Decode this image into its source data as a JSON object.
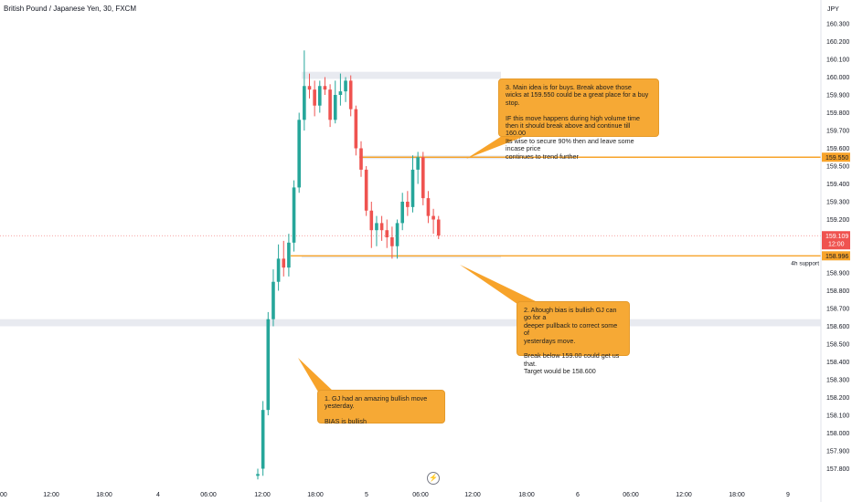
{
  "header": {
    "title": "British Pound / Japanese Yen, 30, FXCM"
  },
  "colors": {
    "up": "#26a69a",
    "down": "#ef5350",
    "accent": "#f7a32a",
    "price_tag": "#ef5350",
    "band": "#e0e3eb"
  },
  "icons": {
    "bottom": "lightning-icon"
  },
  "price_tags": {
    "last": {
      "price": "159.109",
      "time": "12:00"
    },
    "resistance": "159.550",
    "support": "158.996",
    "support_label": "4h support"
  },
  "notes": {
    "n3": "3. Main idea is for buys. Break above those\nwicks at 159.550 could be a great place for a buy stop.\n\nIF this move happens during high volume time\nthen it should break above and continue till 160.00\nIts wise to secure 90% then and leave some incase price\ncontinues to trend further",
    "n2": "2. Altough bias is bullish GJ can go for a\ndeeper pullback to correct some of\nyesterdays move.\n\nBreak below 159.00 could get us that.\nTarget would be 158.600",
    "n1": "1. GJ had an amazing bullish move yesterday.\n\nBIAS is bullish"
  },
  "chart_data": {
    "type": "candlestick",
    "symbol": "British Pound / Japanese Yen, 30, FXCM",
    "currency": "JPY",
    "y_ticks": [
      "160.300",
      "160.200",
      "160.100",
      "160.000",
      "159.900",
      "159.800",
      "159.700",
      "159.600",
      "159.500",
      "159.400",
      "159.300",
      "159.200",
      "159.100",
      "159.000",
      "158.900",
      "158.800",
      "158.700",
      "158.600",
      "158.500",
      "158.400",
      "158.300",
      "158.200",
      "158.100",
      "158.000",
      "157.900",
      "157.800"
    ],
    "x_ticks": [
      "00",
      "12:00",
      "18:00",
      "4",
      "06:00",
      "12:00",
      "18:00",
      "5",
      "06:00",
      "12:00",
      "18:00",
      "6",
      "06:00",
      "12:00",
      "18:00",
      "9"
    ],
    "ylim": [
      157.76,
      160.37
    ],
    "levels": [
      {
        "name": "resistance",
        "price": 159.55
      },
      {
        "name": "support",
        "price": 158.996
      }
    ],
    "zones": [
      {
        "price_low": 159.99,
        "price_high": 160.03
      },
      {
        "price_low": 158.6,
        "price_high": 158.64
      }
    ],
    "candles": [
      {
        "o": 157.76,
        "h": 157.8,
        "l": 157.74,
        "c": 157.77
      },
      {
        "o": 157.8,
        "h": 158.18,
        "l": 157.76,
        "c": 158.13
      },
      {
        "o": 158.13,
        "h": 158.68,
        "l": 158.1,
        "c": 158.64
      },
      {
        "o": 158.64,
        "h": 158.92,
        "l": 158.6,
        "c": 158.85
      },
      {
        "o": 158.85,
        "h": 159.06,
        "l": 158.8,
        "c": 158.98
      },
      {
        "o": 158.98,
        "h": 159.08,
        "l": 158.88,
        "c": 158.93
      },
      {
        "o": 158.93,
        "h": 159.12,
        "l": 158.88,
        "c": 159.07
      },
      {
        "o": 159.07,
        "h": 159.42,
        "l": 159.02,
        "c": 159.38
      },
      {
        "o": 159.38,
        "h": 159.8,
        "l": 159.35,
        "c": 159.76
      },
      {
        "o": 159.76,
        "h": 160.15,
        "l": 159.7,
        "c": 159.95
      },
      {
        "o": 159.95,
        "h": 160.02,
        "l": 159.88,
        "c": 159.93
      },
      {
        "o": 159.93,
        "h": 159.98,
        "l": 159.78,
        "c": 159.84
      },
      {
        "o": 159.84,
        "h": 159.98,
        "l": 159.8,
        "c": 159.95
      },
      {
        "o": 159.95,
        "h": 160.0,
        "l": 159.9,
        "c": 159.93
      },
      {
        "o": 159.93,
        "h": 159.96,
        "l": 159.72,
        "c": 159.76
      },
      {
        "o": 159.76,
        "h": 159.98,
        "l": 159.74,
        "c": 159.9
      },
      {
        "o": 159.9,
        "h": 160.02,
        "l": 159.84,
        "c": 159.92
      },
      {
        "o": 159.92,
        "h": 160.0,
        "l": 159.86,
        "c": 159.98
      },
      {
        "o": 159.98,
        "h": 160.01,
        "l": 159.78,
        "c": 159.82
      },
      {
        "o": 159.82,
        "h": 159.84,
        "l": 159.56,
        "c": 159.6
      },
      {
        "o": 159.6,
        "h": 159.64,
        "l": 159.44,
        "c": 159.48
      },
      {
        "o": 159.48,
        "h": 159.5,
        "l": 159.22,
        "c": 159.25
      },
      {
        "o": 159.25,
        "h": 159.3,
        "l": 159.04,
        "c": 159.14
      },
      {
        "o": 159.14,
        "h": 159.22,
        "l": 159.05,
        "c": 159.18
      },
      {
        "o": 159.18,
        "h": 159.22,
        "l": 159.08,
        "c": 159.14
      },
      {
        "o": 159.14,
        "h": 159.2,
        "l": 159.04,
        "c": 159.1
      },
      {
        "o": 159.1,
        "h": 159.16,
        "l": 158.98,
        "c": 159.05
      },
      {
        "o": 159.05,
        "h": 159.2,
        "l": 158.98,
        "c": 159.18
      },
      {
        "o": 159.18,
        "h": 159.35,
        "l": 159.14,
        "c": 159.3
      },
      {
        "o": 159.3,
        "h": 159.36,
        "l": 159.22,
        "c": 159.27
      },
      {
        "o": 159.27,
        "h": 159.56,
        "l": 159.24,
        "c": 159.48
      },
      {
        "o": 159.48,
        "h": 159.58,
        "l": 159.4,
        "c": 159.55
      },
      {
        "o": 159.55,
        "h": 159.58,
        "l": 159.28,
        "c": 159.32
      },
      {
        "o": 159.32,
        "h": 159.36,
        "l": 159.18,
        "c": 159.22
      },
      {
        "o": 159.22,
        "h": 159.26,
        "l": 159.12,
        "c": 159.2
      },
      {
        "o": 159.2,
        "h": 159.22,
        "l": 159.09,
        "c": 159.11
      }
    ]
  }
}
